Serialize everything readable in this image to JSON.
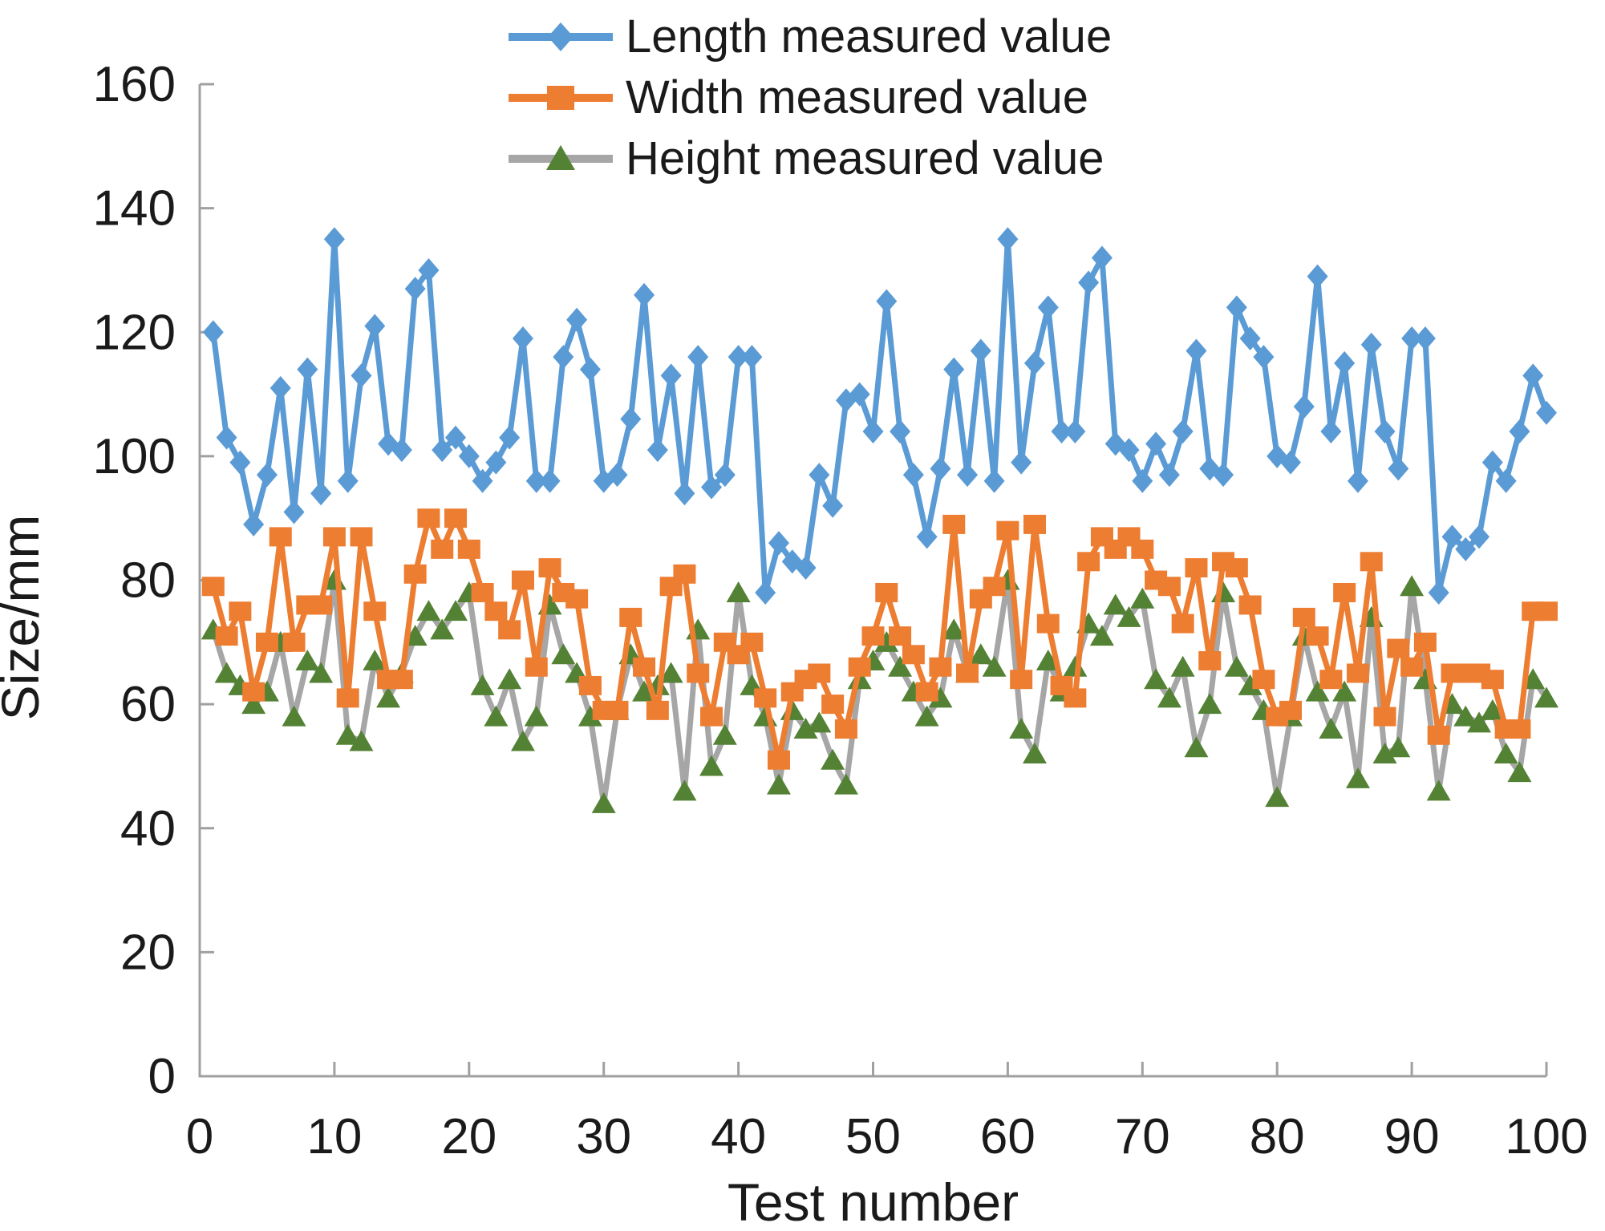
{
  "page": {
    "background": "#ffffff"
  },
  "chart_data": {
    "type": "line",
    "title": "",
    "xlabel": "Test number",
    "ylabel": "Size/mm",
    "xlim": [
      0,
      100
    ],
    "ylim": [
      0,
      160
    ],
    "x_ticks": [
      0,
      10,
      20,
      30,
      40,
      50,
      60,
      70,
      80,
      90,
      100
    ],
    "y_ticks": [
      0,
      20,
      40,
      60,
      80,
      100,
      120,
      140,
      160
    ],
    "grid": false,
    "legend_position": "top-center",
    "axis_color": "#a0a0a0",
    "text_color": "#1a1a1a",
    "x": [
      1,
      2,
      3,
      4,
      5,
      6,
      7,
      8,
      9,
      10,
      11,
      12,
      13,
      14,
      15,
      16,
      17,
      18,
      19,
      20,
      21,
      22,
      23,
      24,
      25,
      26,
      27,
      28,
      29,
      30,
      31,
      32,
      33,
      34,
      35,
      36,
      37,
      38,
      39,
      40,
      41,
      42,
      43,
      44,
      45,
      46,
      47,
      48,
      49,
      50,
      51,
      52,
      53,
      54,
      55,
      56,
      57,
      58,
      59,
      60,
      61,
      62,
      63,
      64,
      65,
      66,
      67,
      68,
      69,
      70,
      71,
      72,
      73,
      74,
      75,
      76,
      77,
      78,
      79,
      80,
      81,
      82,
      83,
      84,
      85,
      86,
      87,
      88,
      89,
      90,
      91,
      92,
      93,
      94,
      95,
      96,
      97,
      98,
      99,
      100
    ],
    "series": [
      {
        "name": "Length measured value",
        "marker": "diamond",
        "line_color": "#5B9BD5",
        "marker_color": "#5B9BD5",
        "values": [
          120,
          103,
          99,
          89,
          97,
          111,
          91,
          114,
          94,
          135,
          96,
          113,
          121,
          102,
          101,
          127,
          130,
          101,
          103,
          100,
          96,
          99,
          103,
          119,
          96,
          96,
          116,
          122,
          114,
          96,
          97,
          106,
          126,
          101,
          113,
          94,
          116,
          95,
          97,
          116,
          116,
          78,
          86,
          83,
          82,
          97,
          92,
          109,
          110,
          104,
          125,
          104,
          97,
          87,
          98,
          114,
          97,
          117,
          96,
          135,
          99,
          115,
          124,
          104,
          104,
          128,
          132,
          102,
          101,
          96,
          102,
          97,
          104,
          117,
          98,
          97,
          124,
          119,
          116,
          100,
          99,
          108,
          129,
          104,
          115,
          96,
          118,
          104,
          98,
          119,
          119,
          78,
          87,
          85,
          87,
          99,
          96,
          104,
          113,
          107
        ]
      },
      {
        "name": "Width measured value",
        "marker": "square",
        "line_color": "#ED7D31",
        "marker_color": "#ED7D31",
        "values": [
          79,
          71,
          75,
          62,
          70,
          87,
          70,
          76,
          76,
          87,
          61,
          87,
          75,
          64,
          64,
          81,
          90,
          85,
          90,
          85,
          78,
          75,
          72,
          80,
          66,
          82,
          78,
          77,
          63,
          59,
          59,
          74,
          66,
          59,
          79,
          81,
          65,
          58,
          70,
          68,
          70,
          61,
          51,
          62,
          64,
          65,
          60,
          56,
          66,
          71,
          78,
          71,
          68,
          62,
          66,
          89,
          65,
          77,
          79,
          88,
          64,
          89,
          73,
          63,
          61,
          83,
          87,
          85,
          87,
          85,
          80,
          79,
          73,
          82,
          67,
          83,
          82,
          76,
          64,
          58,
          59,
          74,
          71,
          64,
          78,
          65,
          83,
          58,
          69,
          66,
          70,
          55,
          65,
          65,
          65,
          64,
          56,
          56,
          75,
          75
        ]
      },
      {
        "name": "Height measured value",
        "marker": "triangle",
        "line_color": "#A6A6A6",
        "marker_color": "#548235",
        "values": [
          72,
          65,
          63,
          60,
          62,
          70,
          58,
          67,
          65,
          80,
          55,
          54,
          67,
          61,
          65,
          71,
          75,
          72,
          75,
          78,
          63,
          58,
          64,
          54,
          58,
          76,
          68,
          65,
          58,
          44,
          59,
          68,
          62,
          63,
          65,
          46,
          72,
          50,
          55,
          78,
          63,
          58,
          47,
          59,
          56,
          57,
          51,
          47,
          64,
          67,
          70,
          66,
          62,
          58,
          61,
          72,
          65,
          68,
          66,
          80,
          56,
          52,
          67,
          62,
          66,
          73,
          71,
          76,
          74,
          77,
          64,
          61,
          66,
          53,
          60,
          78,
          66,
          63,
          59,
          45,
          58,
          71,
          62,
          56,
          62,
          48,
          74,
          52,
          53,
          79,
          64,
          46,
          60,
          58,
          57,
          59,
          52,
          49,
          64,
          61
        ]
      }
    ]
  }
}
